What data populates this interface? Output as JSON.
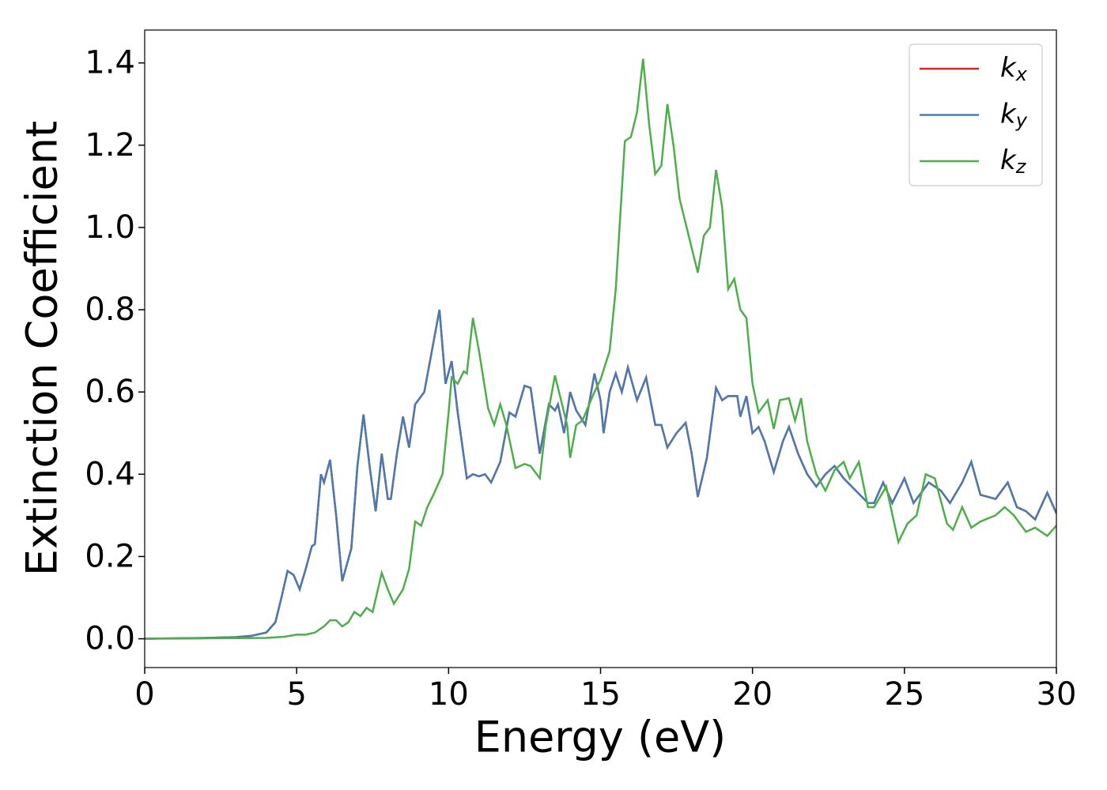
{
  "chart_data": {
    "type": "line",
    "xlabel": "Energy (eV)",
    "ylabel": "Extinction Coefficient",
    "xlim": [
      0,
      30
    ],
    "ylim": [
      -0.07,
      1.48
    ],
    "xticks": [
      0,
      5,
      10,
      15,
      20,
      25,
      30
    ],
    "yticks": [
      {
        "value": 0,
        "label": "0.0"
      },
      0.2,
      0.4,
      0.6,
      0.8,
      {
        "value": 1,
        "label": "1.0"
      },
      1.2,
      1.4
    ],
    "legend": "upper right",
    "series": [
      {
        "name": "kx",
        "color": "#d62728",
        "x": [
          0,
          1,
          2,
          3,
          3.5,
          4,
          4.3,
          4.5,
          4.7,
          4.9,
          5.1,
          5.3,
          5.5,
          5.6,
          5.8,
          5.9,
          6.1,
          6.3,
          6.5,
          6.8,
          7.0,
          7.2,
          7.4,
          7.6,
          7.8,
          8.0,
          8.1,
          8.3,
          8.5,
          8.7,
          8.9,
          9.0,
          9.2,
          9.5,
          9.7,
          9.9,
          10.1,
          10.3,
          10.6,
          10.8,
          11.0,
          11.2,
          11.4,
          11.7,
          12.0,
          12.2,
          12.5,
          12.7,
          13.0,
          13.3,
          13.5,
          13.6,
          13.8,
          14.0,
          14.2,
          14.5,
          14.8,
          15.0,
          15.1,
          15.3,
          15.5,
          15.7,
          15.9,
          16.2,
          16.5,
          16.8,
          17.0,
          17.2,
          17.5,
          17.8,
          18.0,
          18.2,
          18.5,
          18.8,
          19.0,
          19.2,
          19.5,
          19.6,
          19.8,
          20.0,
          20.2,
          20.4,
          20.7,
          21.0,
          21.2,
          21.5,
          21.8,
          22.1,
          22.4,
          22.7,
          23.0,
          23.4,
          23.8,
          24.0,
          24.3,
          24.6,
          25.0,
          25.3,
          25.8,
          26.2,
          26.5,
          26.9,
          27.2,
          27.5,
          28.0,
          28.4,
          28.7,
          29.0,
          29.3,
          29.7,
          30
        ],
        "values": [
          0,
          0.001,
          0.002,
          0.004,
          0.007,
          0.015,
          0.04,
          0.1,
          0.165,
          0.155,
          0.12,
          0.17,
          0.225,
          0.23,
          0.4,
          0.38,
          0.435,
          0.3,
          0.14,
          0.22,
          0.42,
          0.545,
          0.42,
          0.31,
          0.45,
          0.34,
          0.34,
          0.45,
          0.54,
          0.465,
          0.57,
          0.58,
          0.6,
          0.72,
          0.8,
          0.62,
          0.675,
          0.55,
          0.39,
          0.4,
          0.395,
          0.4,
          0.38,
          0.43,
          0.55,
          0.54,
          0.615,
          0.61,
          0.45,
          0.57,
          0.555,
          0.57,
          0.5,
          0.6,
          0.555,
          0.52,
          0.645,
          0.58,
          0.5,
          0.6,
          0.645,
          0.6,
          0.66,
          0.58,
          0.635,
          0.52,
          0.52,
          0.465,
          0.5,
          0.525,
          0.45,
          0.345,
          0.44,
          0.61,
          0.58,
          0.59,
          0.59,
          0.54,
          0.59,
          0.5,
          0.515,
          0.48,
          0.405,
          0.48,
          0.515,
          0.45,
          0.4,
          0.37,
          0.4,
          0.42,
          0.39,
          0.36,
          0.33,
          0.33,
          0.38,
          0.33,
          0.39,
          0.33,
          0.38,
          0.36,
          0.33,
          0.38,
          0.43,
          0.35,
          0.34,
          0.38,
          0.32,
          0.31,
          0.29,
          0.355,
          0.305
        ]
      },
      {
        "name": "ky",
        "color": "#4a7bb0",
        "x": [
          0,
          1,
          2,
          3,
          3.5,
          4,
          4.3,
          4.5,
          4.7,
          4.9,
          5.1,
          5.3,
          5.5,
          5.6,
          5.8,
          5.9,
          6.1,
          6.3,
          6.5,
          6.8,
          7.0,
          7.2,
          7.4,
          7.6,
          7.8,
          8.0,
          8.1,
          8.3,
          8.5,
          8.7,
          8.9,
          9.0,
          9.2,
          9.5,
          9.7,
          9.9,
          10.1,
          10.3,
          10.6,
          10.8,
          11.0,
          11.2,
          11.4,
          11.7,
          12.0,
          12.2,
          12.5,
          12.7,
          13.0,
          13.3,
          13.5,
          13.6,
          13.8,
          14.0,
          14.2,
          14.5,
          14.8,
          15.0,
          15.1,
          15.3,
          15.5,
          15.7,
          15.9,
          16.2,
          16.5,
          16.8,
          17.0,
          17.2,
          17.5,
          17.8,
          18.0,
          18.2,
          18.5,
          18.8,
          19.0,
          19.2,
          19.5,
          19.6,
          19.8,
          20.0,
          20.2,
          20.4,
          20.7,
          21.0,
          21.2,
          21.5,
          21.8,
          22.1,
          22.4,
          22.7,
          23.0,
          23.4,
          23.8,
          24.0,
          24.3,
          24.6,
          25.0,
          25.3,
          25.8,
          26.2,
          26.5,
          26.9,
          27.2,
          27.5,
          28.0,
          28.4,
          28.7,
          29.0,
          29.3,
          29.7,
          30
        ],
        "values": [
          0,
          0.001,
          0.002,
          0.004,
          0.007,
          0.015,
          0.04,
          0.1,
          0.165,
          0.155,
          0.12,
          0.17,
          0.225,
          0.23,
          0.4,
          0.38,
          0.435,
          0.3,
          0.14,
          0.22,
          0.42,
          0.545,
          0.42,
          0.31,
          0.45,
          0.34,
          0.34,
          0.45,
          0.54,
          0.465,
          0.57,
          0.58,
          0.6,
          0.72,
          0.8,
          0.62,
          0.675,
          0.55,
          0.39,
          0.4,
          0.395,
          0.4,
          0.38,
          0.43,
          0.55,
          0.54,
          0.615,
          0.61,
          0.45,
          0.57,
          0.555,
          0.57,
          0.5,
          0.6,
          0.555,
          0.52,
          0.645,
          0.58,
          0.5,
          0.6,
          0.645,
          0.6,
          0.66,
          0.58,
          0.635,
          0.52,
          0.52,
          0.465,
          0.5,
          0.525,
          0.45,
          0.345,
          0.44,
          0.61,
          0.58,
          0.59,
          0.59,
          0.54,
          0.59,
          0.5,
          0.515,
          0.48,
          0.405,
          0.48,
          0.515,
          0.45,
          0.4,
          0.37,
          0.4,
          0.42,
          0.39,
          0.36,
          0.33,
          0.33,
          0.38,
          0.33,
          0.39,
          0.33,
          0.38,
          0.36,
          0.33,
          0.38,
          0.43,
          0.35,
          0.34,
          0.38,
          0.32,
          0.31,
          0.29,
          0.355,
          0.305
        ]
      },
      {
        "name": "kz",
        "color": "#4daf4a",
        "x": [
          0,
          2,
          4,
          4.6,
          5.0,
          5.3,
          5.6,
          5.9,
          6.1,
          6.3,
          6.5,
          6.7,
          6.9,
          7.1,
          7.3,
          7.5,
          7.8,
          8.0,
          8.2,
          8.5,
          8.7,
          8.9,
          9.1,
          9.3,
          9.5,
          9.8,
          10.0,
          10.1,
          10.3,
          10.5,
          10.6,
          10.8,
          11.0,
          11.3,
          11.5,
          11.7,
          11.9,
          12.1,
          12.2,
          12.5,
          12.7,
          13.0,
          13.2,
          13.5,
          13.7,
          13.9,
          14.0,
          14.2,
          14.4,
          14.8,
          15.0,
          15.3,
          15.5,
          15.8,
          16.0,
          16.2,
          16.4,
          16.6,
          16.8,
          17.0,
          17.2,
          17.4,
          17.6,
          17.9,
          18.0,
          18.2,
          18.4,
          18.6,
          18.8,
          19.0,
          19.2,
          19.4,
          19.6,
          19.8,
          20.0,
          20.2,
          20.5,
          20.7,
          20.9,
          21.2,
          21.4,
          21.6,
          21.8,
          22.1,
          22.4,
          22.7,
          23.0,
          23.2,
          23.5,
          23.8,
          24.0,
          24.4,
          24.8,
          25.1,
          25.4,
          25.7,
          26.0,
          26.4,
          26.6,
          26.9,
          27.2,
          27.5,
          28.0,
          28.3,
          28.6,
          29.0,
          29.3,
          29.7,
          30
        ],
        "values": [
          0,
          0.001,
          0.002,
          0.005,
          0.01,
          0.01,
          0.015,
          0.03,
          0.045,
          0.045,
          0.03,
          0.04,
          0.065,
          0.055,
          0.075,
          0.065,
          0.16,
          0.12,
          0.085,
          0.12,
          0.17,
          0.285,
          0.275,
          0.32,
          0.35,
          0.4,
          0.55,
          0.635,
          0.62,
          0.65,
          0.645,
          0.78,
          0.7,
          0.56,
          0.52,
          0.57,
          0.52,
          0.45,
          0.415,
          0.425,
          0.42,
          0.39,
          0.52,
          0.64,
          0.58,
          0.52,
          0.44,
          0.52,
          0.53,
          0.6,
          0.63,
          0.7,
          0.85,
          1.21,
          1.22,
          1.28,
          1.41,
          1.25,
          1.13,
          1.15,
          1.3,
          1.2,
          1.07,
          0.98,
          0.95,
          0.89,
          0.98,
          1.0,
          1.14,
          1.05,
          0.85,
          0.875,
          0.8,
          0.78,
          0.62,
          0.55,
          0.58,
          0.51,
          0.58,
          0.585,
          0.53,
          0.585,
          0.48,
          0.4,
          0.36,
          0.41,
          0.43,
          0.39,
          0.43,
          0.32,
          0.32,
          0.37,
          0.235,
          0.28,
          0.3,
          0.4,
          0.39,
          0.28,
          0.265,
          0.32,
          0.27,
          0.285,
          0.3,
          0.32,
          0.3,
          0.26,
          0.27,
          0.25,
          0.275
        ]
      }
    ]
  }
}
